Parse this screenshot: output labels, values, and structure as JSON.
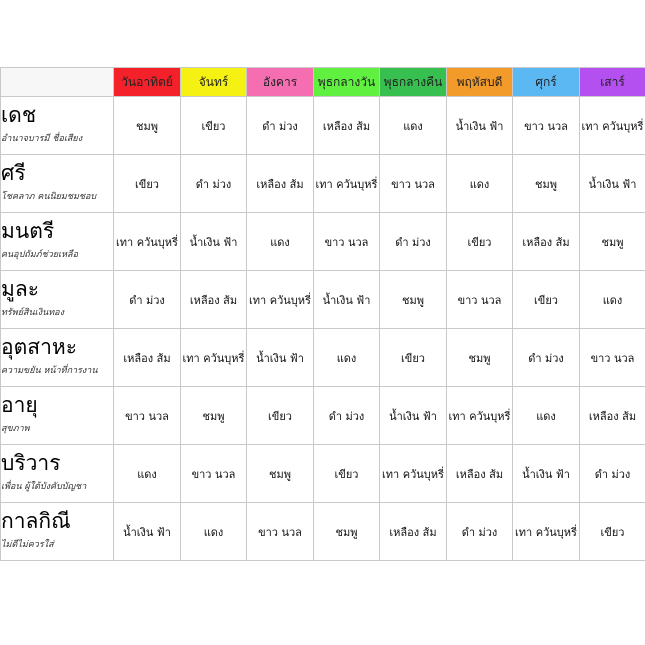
{
  "days": [
    {
      "label": "วันอาทิตย์",
      "color": "#f4212a"
    },
    {
      "label": "จันทร์",
      "color": "#f5f213"
    },
    {
      "label": "อังคาร",
      "color": "#f56eb2"
    },
    {
      "label": "พุธกลางวัน",
      "color": "#5ff040"
    },
    {
      "label": "พุธกลางคืน",
      "color": "#37c04f"
    },
    {
      "label": "พฤหัสบดี",
      "color": "#f29a2a"
    },
    {
      "label": "ศุกร์",
      "color": "#5cb8f2"
    },
    {
      "label": "เสาร์",
      "color": "#b44ff0"
    }
  ],
  "rows": [
    {
      "title": "เดช",
      "subtitle": "อำนาจบารมี ชื่อเสียง",
      "cells": [
        "ชมพู",
        "เขียว",
        "ดำ ม่วง",
        "เหลือง ส้ม",
        "แดง",
        "น้ำเงิน ฟ้า",
        "ขาว นวล",
        "เทา ควันบุหรี่"
      ]
    },
    {
      "title": "ศรี",
      "subtitle": "โชคลาภ คนนิยมชมชอบ",
      "cells": [
        "เขียว",
        "ดำ ม่วง",
        "เหลือง ส้ม",
        "เทา ควันบุหรี่",
        "ขาว นวล",
        "แดง",
        "ชมพู",
        "น้ำเงิน ฟ้า"
      ]
    },
    {
      "title": "มนตรี",
      "subtitle": "คนอุปถัมภ์ช่วยเหลือ",
      "cells": [
        "เทา ควันบุหรี่",
        "น้ำเงิน ฟ้า",
        "แดง",
        "ขาว นวล",
        "ดำ ม่วง",
        "เขียว",
        "เหลือง ส้ม",
        "ชมพู"
      ]
    },
    {
      "title": "มูละ",
      "subtitle": "ทรัพย์สินเงินทอง",
      "cells": [
        "ดำ ม่วง",
        "เหลือง ส้ม",
        "เทา ควันบุหรี่",
        "น้ำเงิน ฟ้า",
        "ชมพู",
        "ขาว นวล",
        "เขียว",
        "แดง"
      ]
    },
    {
      "title": "อุตสาหะ",
      "subtitle": "ความขยัน หน้าที่การงาน",
      "cells": [
        "เหลือง ส้ม",
        "เทา ควันบุหรี่",
        "น้ำเงิน ฟ้า",
        "แดง",
        "เขียว",
        "ชมพู",
        "ดำ ม่วง",
        "ขาว นวล"
      ]
    },
    {
      "title": "อายุ",
      "subtitle": "สุขภาพ",
      "cells": [
        "ขาว นวล",
        "ชมพู",
        "เขียว",
        "ดำ ม่วง",
        "น้ำเงิน ฟ้า",
        "เทา ควันบุหรี่",
        "แดง",
        "เหลือง ส้ม"
      ]
    },
    {
      "title": "บริวาร",
      "subtitle": "เพื่อน ผู้ใต้บังคับบัญชา",
      "cells": [
        "แดง",
        "ขาว นวล",
        "ชมพู",
        "เขียว",
        "เทา ควันบุหรี่",
        "เหลือง ส้ม",
        "น้ำเงิน ฟ้า",
        "ดำ ม่วง"
      ]
    },
    {
      "title": "กาลกิณี",
      "subtitle": "ไม่ดีไม่ควรใส่",
      "cells": [
        "น้ำเงิน ฟ้า",
        "แดง",
        "ขาว นวล",
        "ชมพู",
        "เหลือง ส้ม",
        "ดำ ม่วง",
        "เทา ควันบุหรี่",
        "เขียว"
      ]
    }
  ]
}
